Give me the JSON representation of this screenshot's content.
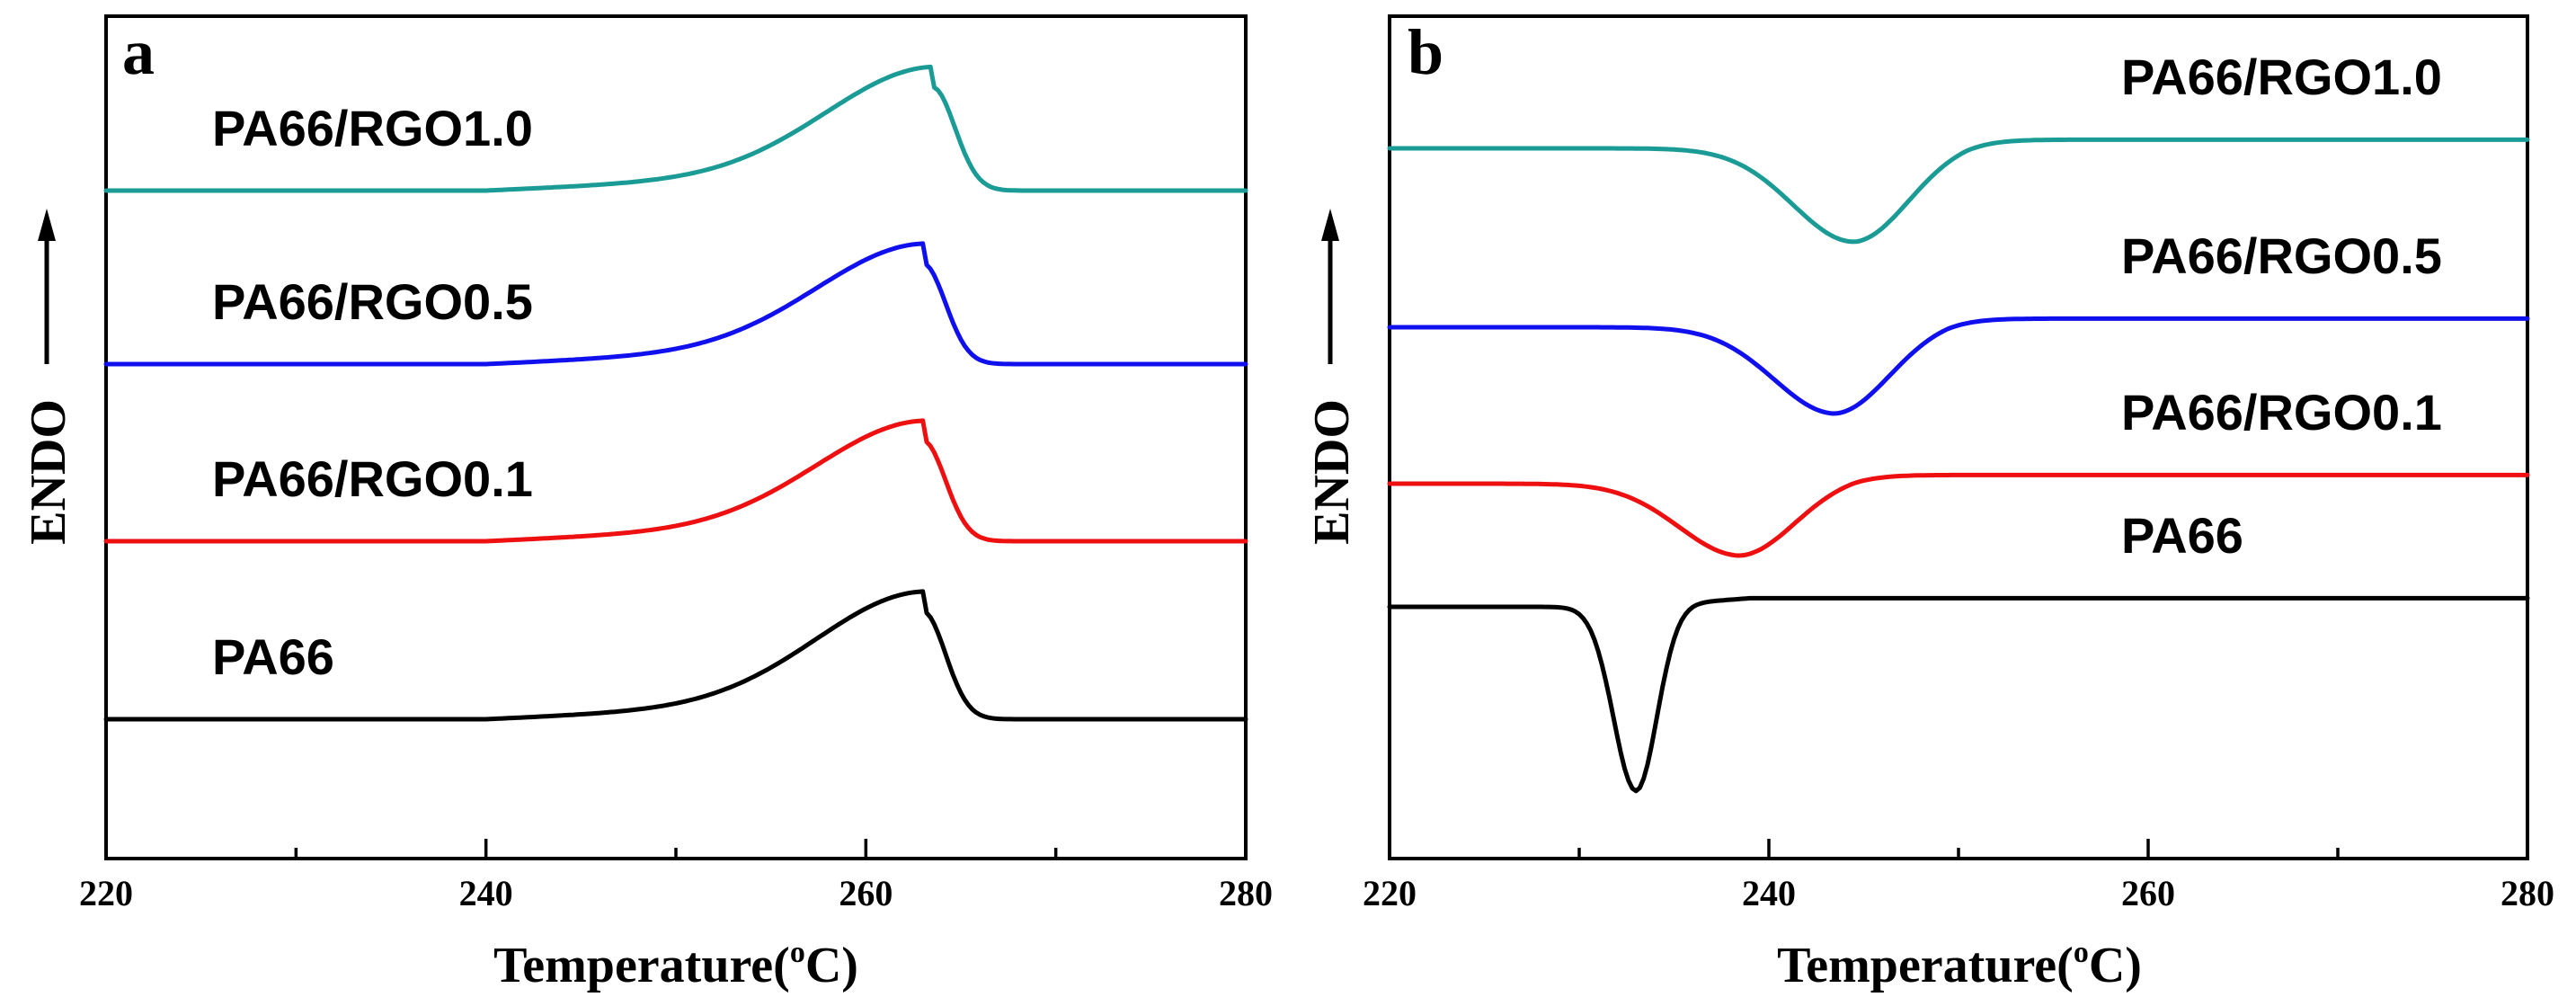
{
  "chart_data": [
    {
      "panel": "a",
      "type": "line",
      "xlabel_main": "Temperature(",
      "xlabel_sup": "o",
      "xlabel_end": "C)",
      "ylabel": "ENDO",
      "xlim": [
        220,
        280
      ],
      "xticks": [
        220,
        240,
        260,
        280
      ],
      "y_axis_tick_labels": false,
      "grid": false,
      "series": [
        {
          "name": "PA66/RGO1.0",
          "color": "#1a9b96",
          "offset": 3,
          "peak_x": 263.5,
          "peak_height": 0.72,
          "peak_type": "endo"
        },
        {
          "name": "PA66/RGO0.5",
          "color": "#1010ee",
          "offset": 2,
          "peak_x": 263.0,
          "peak_height": 0.7,
          "peak_type": "endo"
        },
        {
          "name": "PA66/RGO0.1",
          "color": "#ee1010",
          "offset": 1,
          "peak_x": 263.0,
          "peak_height": 0.7,
          "peak_type": "endo"
        },
        {
          "name": "PA66",
          "color": "#000000",
          "offset": 0,
          "peak_x": 263.0,
          "peak_height": 0.75,
          "peak_type": "endo"
        }
      ]
    },
    {
      "panel": "b",
      "type": "line",
      "xlabel_main": "Temperature(",
      "xlabel_sup": "o",
      "xlabel_end": "C)",
      "ylabel": "ENDO",
      "xlim": [
        220,
        280
      ],
      "xticks": [
        220,
        240,
        260,
        280
      ],
      "y_axis_tick_labels": false,
      "grid": false,
      "series": [
        {
          "name": "PA66/RGO1.0",
          "color": "#1a9b96",
          "offset": 3,
          "peak_x": 244.5,
          "peak_height": 0.65,
          "peak_type": "exo"
        },
        {
          "name": "PA66/RGO0.5",
          "color": "#1010ee",
          "offset": 2,
          "peak_x": 243.5,
          "peak_height": 0.6,
          "peak_type": "exo"
        },
        {
          "name": "PA66/RGO0.1",
          "color": "#ee1010",
          "offset": 1,
          "peak_x": 238.5,
          "peak_height": 0.5,
          "peak_type": "exo"
        },
        {
          "name": "PA66",
          "color": "#000000",
          "offset": 0,
          "peak_x": 233.0,
          "peak_height": 1.28,
          "peak_type": "exo"
        }
      ]
    }
  ]
}
